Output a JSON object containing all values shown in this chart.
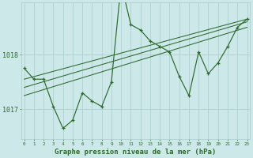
{
  "title": "Graphe pression niveau de la mer (hPa)",
  "bg_color": "#cce8e8",
  "line_color": "#2d6a2d",
  "grid_color": "#aacccc",
  "x_ticks": [
    0,
    1,
    2,
    3,
    4,
    5,
    6,
    7,
    8,
    9,
    10,
    11,
    12,
    13,
    14,
    15,
    16,
    17,
    18,
    19,
    20,
    21,
    22,
    23
  ],
  "y_ticks": [
    1017,
    1018
  ],
  "ylim": [
    1016.45,
    1018.95
  ],
  "xlim": [
    -0.3,
    23.3
  ],
  "series1_x": [
    0,
    1,
    2,
    3,
    4,
    5,
    6,
    7,
    8,
    9,
    10,
    11,
    12,
    13,
    14,
    15,
    16,
    17,
    18,
    19,
    20,
    21,
    22,
    23
  ],
  "series1_y": [
    1017.75,
    1017.55,
    1017.55,
    1017.05,
    1016.65,
    1016.8,
    1017.3,
    1017.15,
    1017.05,
    1017.5,
    1019.3,
    1018.55,
    1018.45,
    1018.25,
    1018.15,
    1018.05,
    1017.6,
    1017.25,
    1018.05,
    1017.65,
    1017.85,
    1018.15,
    1018.5,
    1018.65
  ],
  "trend1_x": [
    0,
    23
  ],
  "trend1_y": [
    1017.25,
    1018.5
  ],
  "trend2_x": [
    0,
    23
  ],
  "trend2_y": [
    1017.4,
    1018.6
  ],
  "trend3_x": [
    0,
    23
  ],
  "trend3_y": [
    1017.55,
    1018.65
  ],
  "xlabel_fontsize": 6.5,
  "ytick_fontsize": 6,
  "xtick_fontsize": 4.2
}
